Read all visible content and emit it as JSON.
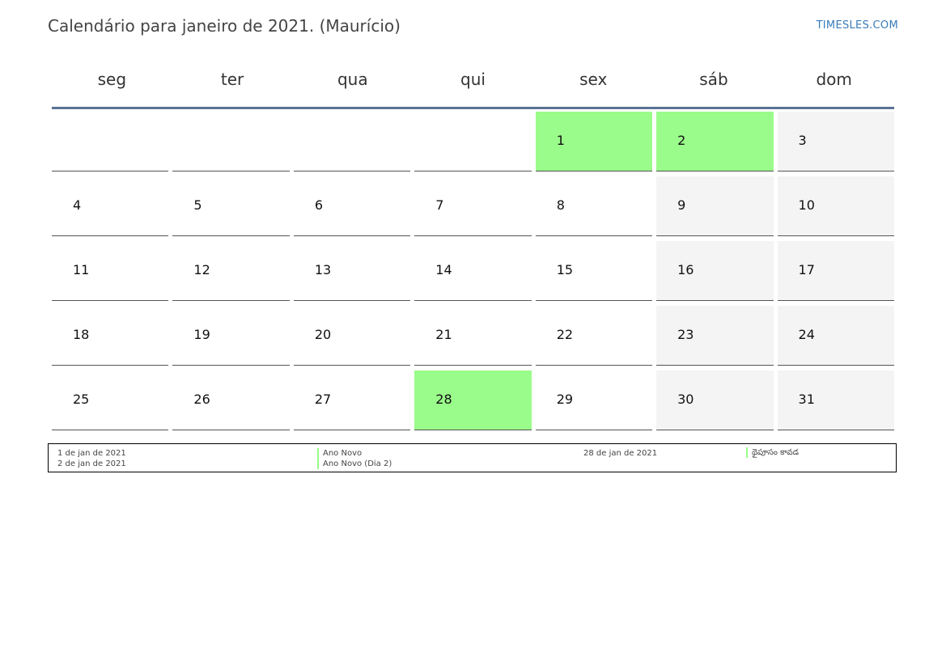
{
  "header": {
    "title": "Calendário para janeiro de 2021. (Maurício)",
    "site": "TIMESLES.COM"
  },
  "weekdays": [
    "seg",
    "ter",
    "qua",
    "qui",
    "sex",
    "sáb",
    "dom"
  ],
  "weeks": [
    [
      "",
      "",
      "",
      "",
      "1",
      "2",
      "3"
    ],
    [
      "4",
      "5",
      "6",
      "7",
      "8",
      "9",
      "10"
    ],
    [
      "11",
      "12",
      "13",
      "14",
      "15",
      "16",
      "17"
    ],
    [
      "18",
      "19",
      "20",
      "21",
      "22",
      "23",
      "24"
    ],
    [
      "25",
      "26",
      "27",
      "28",
      "29",
      "30",
      "31"
    ]
  ],
  "colors": {
    "holiday": "#9afc8a",
    "weekend": "#f4f4f4",
    "header_rule": "#5a7395",
    "link": "#3a7bb8"
  },
  "legend": {
    "dates": [
      "1 de jan de 2021",
      "2 de jan de 2021"
    ],
    "names": [
      "Ano Novo",
      "Ano Novo (Dia 2)"
    ],
    "dates2": [
      "28 de jan de 2021"
    ],
    "names2": [
      "థైపూసం కావడ"
    ]
  }
}
